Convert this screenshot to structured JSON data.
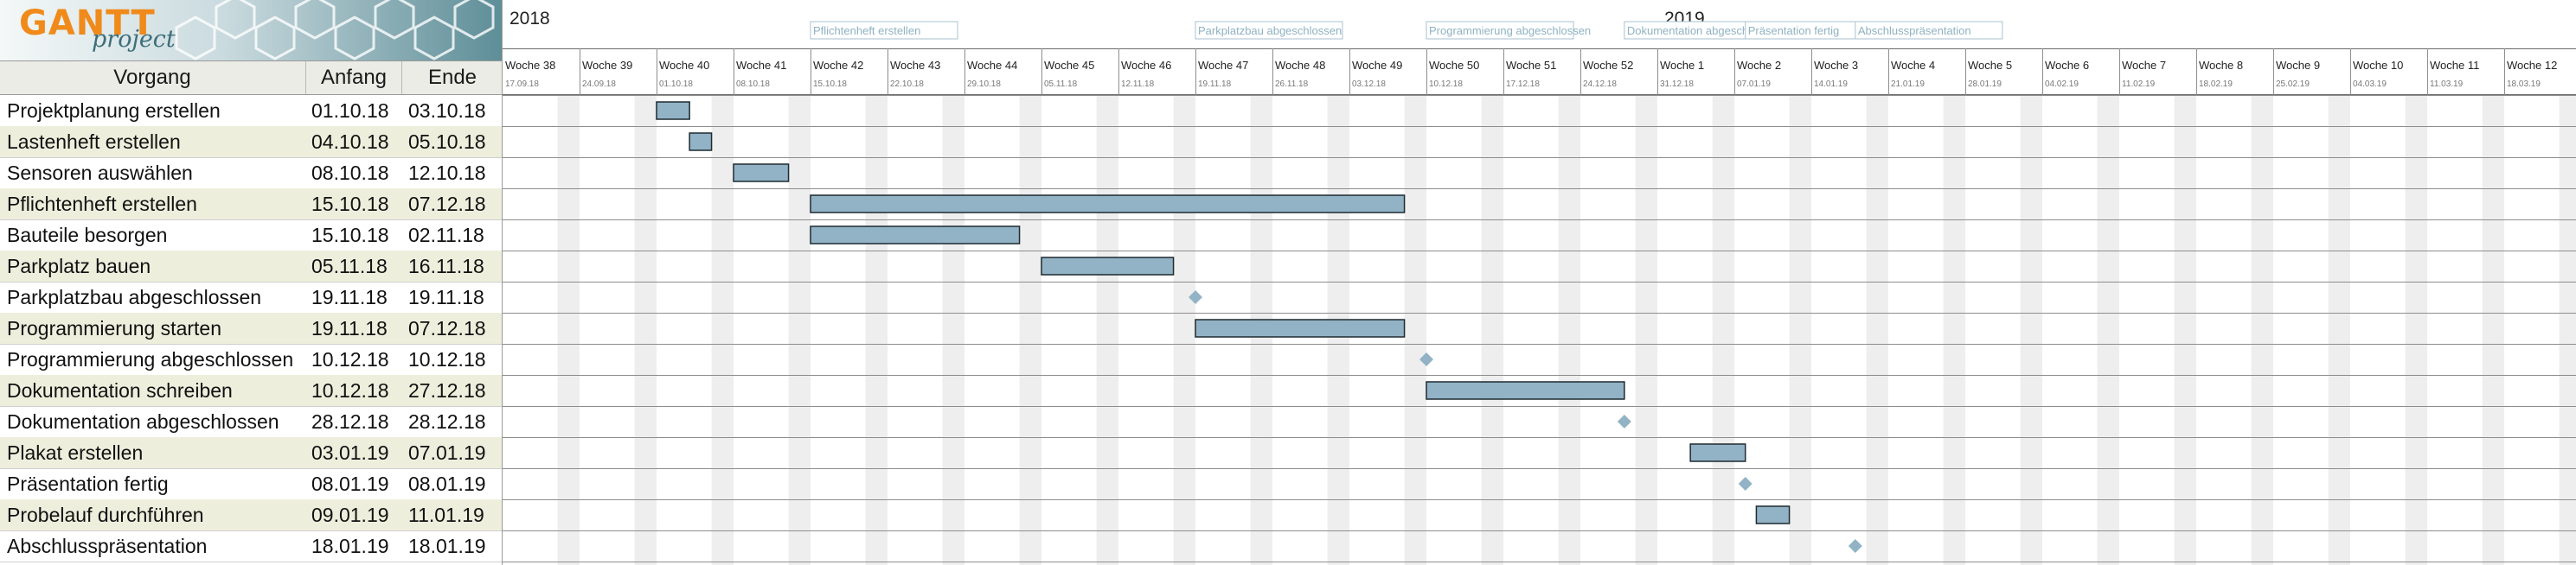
{
  "app": {
    "logo_text": "GANTT",
    "logo_sub": "project"
  },
  "columns": {
    "name": "Vorgang",
    "start": "Anfang",
    "end": "Ende"
  },
  "tasks": [
    {
      "name": "Projektplanung erstellen",
      "start": "01.10.18",
      "end": "03.10.18",
      "kind": "bar"
    },
    {
      "name": "Lastenheft erstellen",
      "start": "04.10.18",
      "end": "05.10.18",
      "kind": "bar"
    },
    {
      "name": "Sensoren auswählen",
      "start": "08.10.18",
      "end": "12.10.18",
      "kind": "bar"
    },
    {
      "name": "Pflichtenheft erstellen",
      "start": "15.10.18",
      "end": "07.12.18",
      "kind": "bar"
    },
    {
      "name": "Bauteile besorgen",
      "start": "15.10.18",
      "end": "02.11.18",
      "kind": "bar"
    },
    {
      "name": "Parkplatz bauen",
      "start": "05.11.18",
      "end": "16.11.18",
      "kind": "bar"
    },
    {
      "name": "Parkplatzbau abgeschlossen",
      "start": "19.11.18",
      "end": "19.11.18",
      "kind": "milestone"
    },
    {
      "name": "Programmierung starten",
      "start": "19.11.18",
      "end": "07.12.18",
      "kind": "bar"
    },
    {
      "name": "Programmierung abgeschlossen",
      "start": "10.12.18",
      "end": "10.12.18",
      "kind": "milestone"
    },
    {
      "name": "Dokumentation schreiben",
      "start": "10.12.18",
      "end": "27.12.18",
      "kind": "bar"
    },
    {
      "name": "Dokumentation abgeschlossen",
      "start": "28.12.18",
      "end": "28.12.18",
      "kind": "milestone"
    },
    {
      "name": "Plakat erstellen",
      "start": "03.01.19",
      "end": "07.01.19",
      "kind": "bar"
    },
    {
      "name": "Präsentation fertig",
      "start": "08.01.19",
      "end": "08.01.19",
      "kind": "milestone"
    },
    {
      "name": "Probelauf durchführen",
      "start": "09.01.19",
      "end": "11.01.19",
      "kind": "bar"
    },
    {
      "name": "Abschlusspräsentation",
      "start": "18.01.19",
      "end": "18.01.19",
      "kind": "milestone"
    }
  ],
  "timeline": {
    "years": [
      "2018",
      "2019"
    ],
    "weeks": [
      {
        "label": "Woche 38",
        "date": "17.09.18"
      },
      {
        "label": "Woche 39",
        "date": "24.09.18"
      },
      {
        "label": "Woche 40",
        "date": "01.10.18"
      },
      {
        "label": "Woche 41",
        "date": "08.10.18"
      },
      {
        "label": "Woche 42",
        "date": "15.10.18"
      },
      {
        "label": "Woche 43",
        "date": "22.10.18"
      },
      {
        "label": "Woche 44",
        "date": "29.10.18"
      },
      {
        "label": "Woche 45",
        "date": "05.11.18"
      },
      {
        "label": "Woche 46",
        "date": "12.11.18"
      },
      {
        "label": "Woche 47",
        "date": "19.11.18"
      },
      {
        "label": "Woche 48",
        "date": "26.11.18"
      },
      {
        "label": "Woche 49",
        "date": "03.12.18"
      },
      {
        "label": "Woche 50",
        "date": "10.12.18"
      },
      {
        "label": "Woche 51",
        "date": "17.12.18"
      },
      {
        "label": "Woche 52",
        "date": "24.12.18"
      },
      {
        "label": "Woche 1",
        "date": "31.12.18"
      },
      {
        "label": "Woche 2",
        "date": "07.01.19"
      },
      {
        "label": "Woche 3",
        "date": "14.01.19"
      },
      {
        "label": "Woche 4",
        "date": "21.01.19"
      },
      {
        "label": "Woche 5",
        "date": "28.01.19"
      },
      {
        "label": "Woche 6",
        "date": "04.02.19"
      },
      {
        "label": "Woche 7",
        "date": "11.02.19"
      },
      {
        "label": "Woche 8",
        "date": "18.02.19"
      },
      {
        "label": "Woche 9",
        "date": "25.02.19"
      },
      {
        "label": "Woche 10",
        "date": "04.03.19"
      },
      {
        "label": "Woche 11",
        "date": "11.03.19"
      },
      {
        "label": "Woche 12",
        "date": "18.03.19"
      }
    ],
    "milestone_labels": [
      {
        "text": "Pflichtenheft erstellen",
        "date": "15.10.18"
      },
      {
        "text": "Parkplatzbau abgeschlossen",
        "date": "19.11.18"
      },
      {
        "text": "Programmierung abgeschlossen",
        "date": "10.12.18"
      },
      {
        "text": "Dokumentation abgeschlossen",
        "date": "28.12.18"
      },
      {
        "text": "Präsentation fertig",
        "date": "08.01.19"
      },
      {
        "text": "Abschlusspräsentation",
        "date": "18.01.19"
      }
    ]
  },
  "colors": {
    "bar_fill": "#92b3c5",
    "bar_stroke": "#1e2a30",
    "milestone": "#92b3c5",
    "weekend": "#eeeeee",
    "row_alt": "#eeeedd",
    "header_bg": "#ecece6",
    "logo_orange": "#f08a1a"
  }
}
